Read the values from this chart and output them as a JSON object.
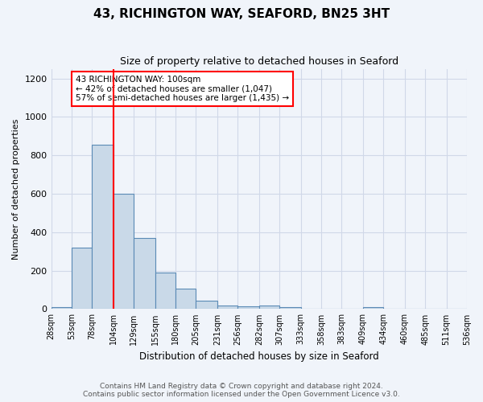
{
  "title": "43, RICHINGTON WAY, SEAFORD, BN25 3HT",
  "subtitle": "Size of property relative to detached houses in Seaford",
  "xlabel": "Distribution of detached houses by size in Seaford",
  "ylabel": "Number of detached properties",
  "bin_edges": [
    28,
    53,
    78,
    104,
    129,
    155,
    180,
    205,
    231,
    256,
    282,
    307,
    333,
    358,
    383,
    409,
    434,
    460,
    485,
    511,
    536
  ],
  "bar_heights": [
    12,
    320,
    855,
    600,
    370,
    190,
    105,
    45,
    20,
    15,
    20,
    12,
    0,
    0,
    0,
    10,
    0,
    0,
    0,
    0
  ],
  "bar_color": "#c9d9e8",
  "bar_edge_color": "#5a8ab5",
  "grid_color": "#d0d8e8",
  "vline_x": 104,
  "vline_color": "red",
  "annotation_text": "43 RICHINGTON WAY: 100sqm\n← 42% of detached houses are smaller (1,047)\n57% of semi-detached houses are larger (1,435) →",
  "annotation_box_color": "white",
  "annotation_box_edge_color": "red",
  "ylim": [
    0,
    1250
  ],
  "yticks": [
    0,
    200,
    400,
    600,
    800,
    1000,
    1200
  ],
  "footer_line1": "Contains HM Land Registry data © Crown copyright and database right 2024.",
  "footer_line2": "Contains public sector information licensed under the Open Government Licence v3.0.",
  "bg_color": "#f0f4fa"
}
